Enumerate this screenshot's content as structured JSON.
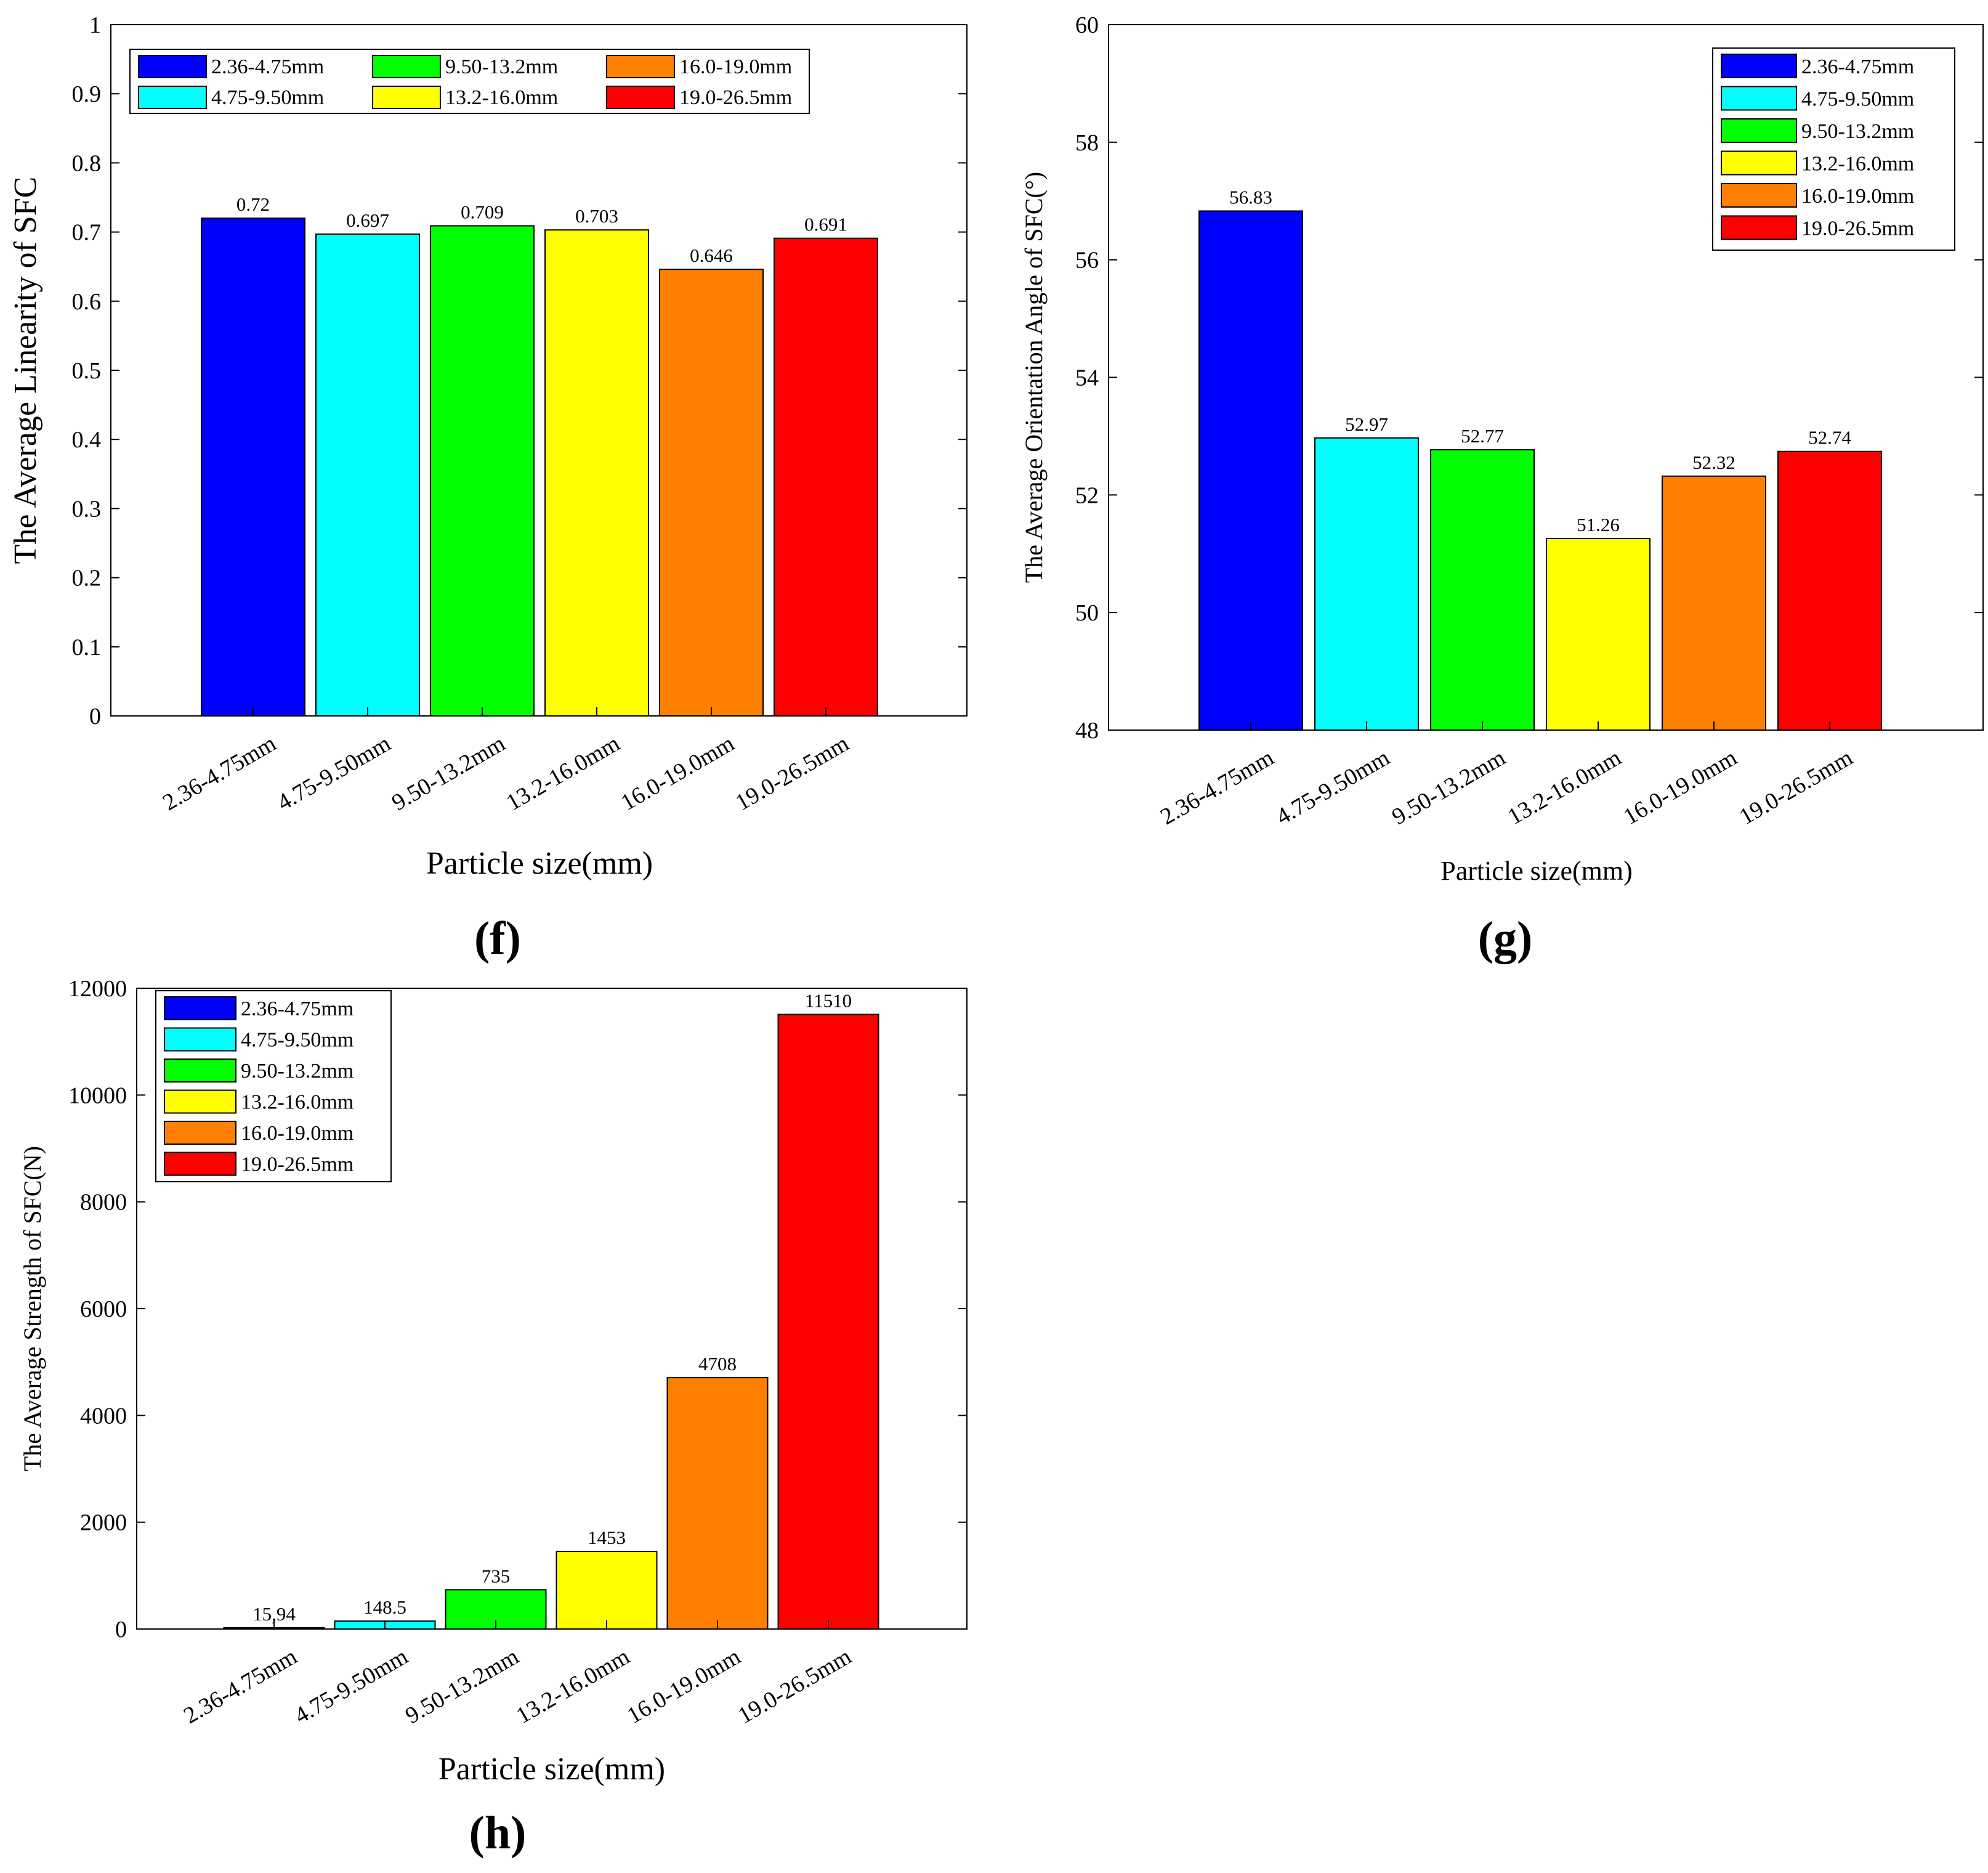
{
  "panels": [
    {
      "panel_label": "(f)",
      "chart_data": {
        "type": "bar",
        "categories": [
          "2.36-4.75mm",
          "4.75-9.50mm",
          "9.50-13.2mm",
          "13.2-16.0mm",
          "16.0-19.0mm",
          "19.0-26.5mm"
        ],
        "values": [
          0.72,
          0.697,
          0.709,
          0.703,
          0.646,
          0.691
        ],
        "value_labels": [
          "0.72",
          "0.697",
          "0.709",
          "0.703",
          "0.646",
          "0.691"
        ],
        "colors": [
          "#0000ff",
          "#00ffff",
          "#00ff00",
          "#ffff00",
          "#ff8000",
          "#ff0000"
        ],
        "title": "",
        "xlabel": "Particle size(mm)",
        "ylabel": "The Average Linearity of SFC",
        "ylim": [
          0,
          1
        ],
        "yticks": [
          0,
          0.1,
          0.2,
          0.3,
          0.4,
          0.5,
          0.6,
          0.7,
          0.8,
          0.9,
          1
        ],
        "ytick_labels": [
          "0",
          "0.1",
          "0.2",
          "0.3",
          "0.4",
          "0.5",
          "0.6",
          "0.7",
          "0.8",
          "0.9",
          "1"
        ],
        "legend": {
          "placement": "top-left",
          "columns": 3,
          "entries": [
            "2.36-4.75mm",
            "4.75-9.50mm",
            "9.50-13.2mm",
            "13.2-16.0mm",
            "16.0-19.0mm",
            "19.0-26.5mm"
          ]
        },
        "grid": false
      }
    },
    {
      "panel_label": "(g)",
      "chart_data": {
        "type": "bar",
        "categories": [
          "2.36-4.75mm",
          "4.75-9.50mm",
          "9.50-13.2mm",
          "13.2-16.0mm",
          "16.0-19.0mm",
          "19.0-26.5mm"
        ],
        "values": [
          56.83,
          52.97,
          52.77,
          51.26,
          52.32,
          52.74
        ],
        "value_labels": [
          "56.83",
          "52.97",
          "52.77",
          "51.26",
          "52.32",
          "52.74"
        ],
        "colors": [
          "#0000ff",
          "#00ffff",
          "#00ff00",
          "#ffff00",
          "#ff8000",
          "#ff0000"
        ],
        "title": "",
        "xlabel": "Particle size(mm)",
        "ylabel": "The Average Orientation Angle of SFC(°)",
        "ylim": [
          48,
          60
        ],
        "yticks": [
          48,
          50,
          52,
          54,
          56,
          58,
          60
        ],
        "ytick_labels": [
          "48",
          "50",
          "52",
          "54",
          "56",
          "58",
          "60"
        ],
        "legend": {
          "placement": "top-right",
          "columns": 1,
          "entries": [
            "2.36-4.75mm",
            "4.75-9.50mm",
            "9.50-13.2mm",
            "13.2-16.0mm",
            "16.0-19.0mm",
            "19.0-26.5mm"
          ]
        },
        "grid": false
      }
    },
    {
      "panel_label": "(h)",
      "chart_data": {
        "type": "bar",
        "categories": [
          "2.36-4.75mm",
          "4.75-9.50mm",
          "9.50-13.2mm",
          "13.2-16.0mm",
          "16.0-19.0mm",
          "19.0-26.5mm"
        ],
        "values": [
          15.94,
          148.5,
          735,
          1453,
          4708,
          11510
        ],
        "value_labels": [
          "15,94",
          "148.5",
          "735",
          "1453",
          "4708",
          "11510"
        ],
        "colors": [
          "#0000ff",
          "#00ffff",
          "#00ff00",
          "#ffff00",
          "#ff8000",
          "#ff0000"
        ],
        "title": "",
        "xlabel": "Particle size(mm)",
        "ylabel": "The Average Strength of SFC(N)",
        "ylim": [
          0,
          12000
        ],
        "yticks": [
          0,
          2000,
          4000,
          6000,
          8000,
          10000,
          12000
        ],
        "ytick_labels": [
          "0",
          "2000",
          "4000",
          "6000",
          "8000",
          "10000",
          "12000"
        ],
        "legend": {
          "placement": "top-left",
          "columns": 1,
          "entries": [
            "2.36-4.75mm",
            "4.75-9.50mm",
            "9.50-13.2mm",
            "13.2-16.0mm",
            "16.0-19.0mm",
            "19.0-26.5mm"
          ]
        },
        "grid": false
      }
    }
  ]
}
